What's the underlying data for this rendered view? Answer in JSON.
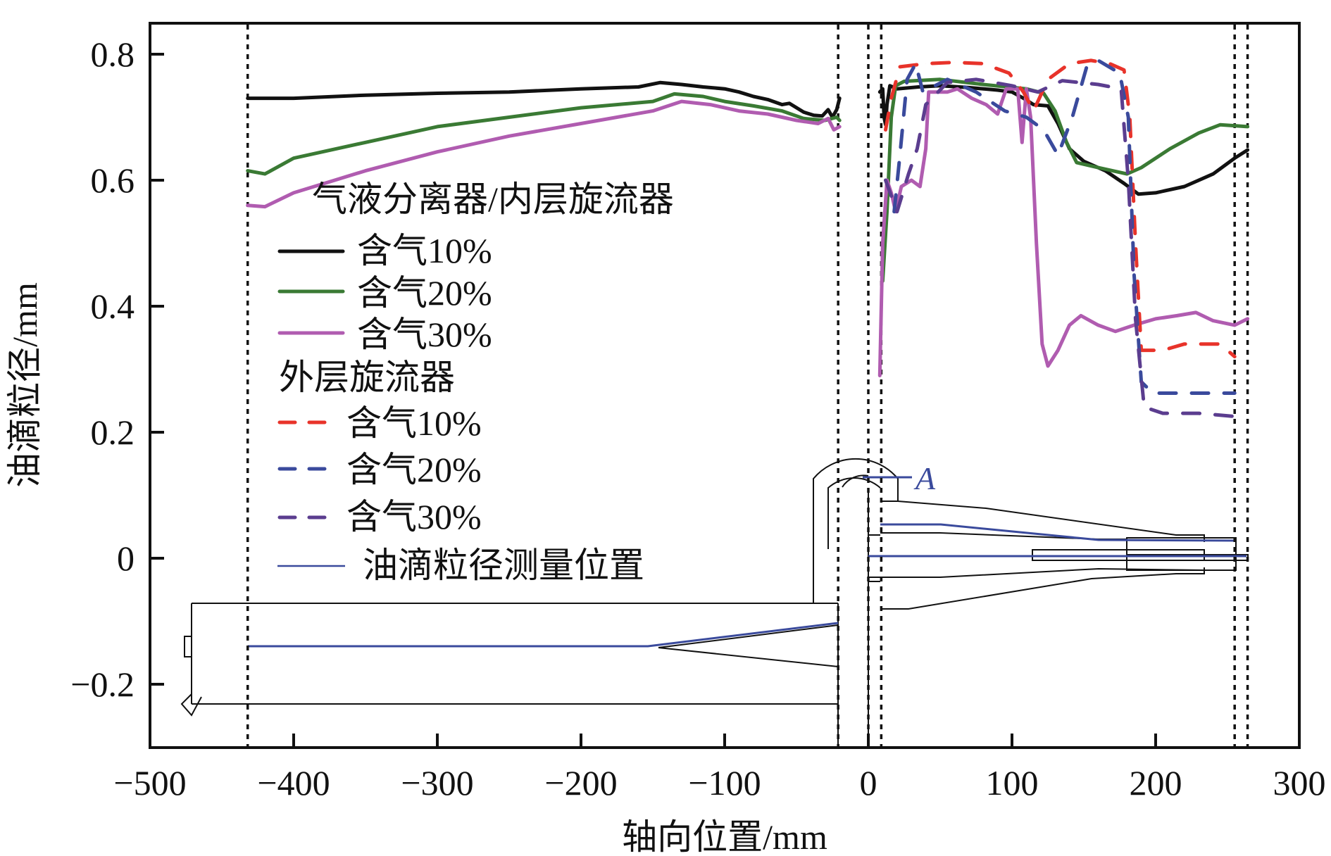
{
  "chart_data": {
    "type": "line",
    "title": "",
    "xlabel": "轴向位置/mm",
    "ylabel": "油滴粒径/mm",
    "xlim": [
      -500,
      300
    ],
    "ylim": [
      -0.3,
      0.85
    ],
    "xticks": [
      -500,
      -400,
      -300,
      -200,
      -100,
      0,
      100,
      200,
      300
    ],
    "xtick_labels": [
      "−500",
      "−400",
      "−300",
      "−200",
      "−100",
      "0",
      "100",
      "200",
      "300"
    ],
    "yticks": [
      -0.2,
      0,
      0.2,
      0.4,
      0.6,
      0.8
    ],
    "ytick_labels": [
      "−0.2",
      "0",
      "0.2",
      "0.4",
      "0.6",
      "0.8"
    ],
    "grid": false,
    "legend_position": "left-center",
    "legend_groups": [
      {
        "heading": "气液分离器/内层旋流器",
        "entries": [
          "含气10%",
          "含气20%",
          "含气30%"
        ]
      },
      {
        "heading": "外层旋流器",
        "entries": [
          "含气10%",
          "含气20%",
          "含气30%"
        ]
      },
      {
        "heading": "",
        "entries": [
          "油滴粒径测量位置"
        ]
      }
    ],
    "reference_lines_x": [
      -432,
      -21,
      0,
      9,
      255,
      264
    ],
    "annotation": "A",
    "series": [
      {
        "name": "气液分离器/内层旋流器 含气10%",
        "group": "inner",
        "style": "solid",
        "color": "#111111",
        "segments": [
          [
            [
              -432,
              0.73
            ],
            [
              -400,
              0.73
            ],
            [
              -350,
              0.735
            ],
            [
              -300,
              0.738
            ],
            [
              -250,
              0.74
            ],
            [
              -200,
              0.745
            ],
            [
              -160,
              0.748
            ],
            [
              -145,
              0.755
            ],
            [
              -130,
              0.752
            ],
            [
              -115,
              0.748
            ],
            [
              -100,
              0.745
            ],
            [
              -90,
              0.74
            ],
            [
              -80,
              0.733
            ],
            [
              -70,
              0.728
            ],
            [
              -60,
              0.72
            ],
            [
              -55,
              0.722
            ],
            [
              -45,
              0.708
            ],
            [
              -38,
              0.703
            ],
            [
              -32,
              0.702
            ],
            [
              -28,
              0.712
            ],
            [
              -25,
              0.7
            ],
            [
              -22,
              0.712
            ],
            [
              -20,
              0.73
            ]
          ],
          [
            [
              8,
              0.74
            ],
            [
              10,
              0.745
            ],
            [
              11,
              0.7
            ],
            [
              12,
              0.688
            ],
            [
              13,
              0.72
            ],
            [
              15,
              0.75
            ],
            [
              20,
              0.745
            ],
            [
              35,
              0.748
            ],
            [
              50,
              0.75
            ],
            [
              70,
              0.747
            ],
            [
              90,
              0.743
            ],
            [
              100,
              0.74
            ],
            [
              108,
              0.73
            ],
            [
              115,
              0.72
            ],
            [
              125,
              0.718
            ],
            [
              132,
              0.69
            ],
            [
              140,
              0.65
            ],
            [
              150,
              0.63
            ],
            [
              165,
              0.615
            ],
            [
              178,
              0.595
            ],
            [
              188,
              0.578
            ],
            [
              200,
              0.58
            ],
            [
              220,
              0.59
            ],
            [
              240,
              0.61
            ],
            [
              255,
              0.635
            ],
            [
              264,
              0.648
            ]
          ]
        ]
      },
      {
        "name": "气液分离器/内层旋流器 含气20%",
        "group": "inner",
        "style": "solid",
        "color": "#3a7a34",
        "segments": [
          [
            [
              -432,
              0.615
            ],
            [
              -420,
              0.61
            ],
            [
              -400,
              0.635
            ],
            [
              -350,
              0.66
            ],
            [
              -300,
              0.685
            ],
            [
              -250,
              0.7
            ],
            [
              -200,
              0.715
            ],
            [
              -150,
              0.725
            ],
            [
              -135,
              0.737
            ],
            [
              -115,
              0.733
            ],
            [
              -100,
              0.725
            ],
            [
              -80,
              0.718
            ],
            [
              -60,
              0.71
            ],
            [
              -45,
              0.698
            ],
            [
              -30,
              0.695
            ],
            [
              -22,
              0.7
            ],
            [
              -20,
              0.695
            ]
          ],
          [
            [
              10,
              0.44
            ],
            [
              13,
              0.55
            ],
            [
              16,
              0.7
            ],
            [
              19,
              0.75
            ],
            [
              25,
              0.757
            ],
            [
              50,
              0.76
            ],
            [
              80,
              0.752
            ],
            [
              110,
              0.745
            ],
            [
              122,
              0.738
            ],
            [
              130,
              0.71
            ],
            [
              138,
              0.66
            ],
            [
              145,
              0.628
            ],
            [
              160,
              0.62
            ],
            [
              180,
              0.61
            ],
            [
              190,
              0.62
            ],
            [
              210,
              0.65
            ],
            [
              230,
              0.675
            ],
            [
              245,
              0.688
            ],
            [
              264,
              0.685
            ]
          ]
        ]
      },
      {
        "name": "气液分离器/内层旋流器 含气30%",
        "group": "inner",
        "style": "solid",
        "color": "#b05cb0",
        "segments": [
          [
            [
              -432,
              0.56
            ],
            [
              -420,
              0.558
            ],
            [
              -400,
              0.58
            ],
            [
              -350,
              0.615
            ],
            [
              -300,
              0.645
            ],
            [
              -250,
              0.67
            ],
            [
              -200,
              0.69
            ],
            [
              -150,
              0.71
            ],
            [
              -130,
              0.725
            ],
            [
              -110,
              0.72
            ],
            [
              -90,
              0.71
            ],
            [
              -70,
              0.705
            ],
            [
              -50,
              0.695
            ],
            [
              -35,
              0.69
            ],
            [
              -28,
              0.698
            ],
            [
              -24,
              0.68
            ],
            [
              -20,
              0.685
            ]
          ],
          [
            [
              8,
              0.29
            ],
            [
              10,
              0.5
            ],
            [
              13,
              0.6
            ],
            [
              16,
              0.58
            ],
            [
              19,
              0.55
            ],
            [
              23,
              0.59
            ],
            [
              30,
              0.6
            ],
            [
              36,
              0.59
            ],
            [
              40,
              0.65
            ],
            [
              42,
              0.74
            ],
            [
              55,
              0.74
            ],
            [
              62,
              0.745
            ],
            [
              72,
              0.73
            ],
            [
              82,
              0.72
            ],
            [
              90,
              0.705
            ],
            [
              96,
              0.745
            ],
            [
              104,
              0.745
            ],
            [
              107,
              0.66
            ],
            [
              110,
              0.745
            ],
            [
              113,
              0.7
            ],
            [
              117,
              0.5
            ],
            [
              121,
              0.34
            ],
            [
              125,
              0.305
            ],
            [
              132,
              0.33
            ],
            [
              140,
              0.37
            ],
            [
              148,
              0.385
            ],
            [
              160,
              0.37
            ],
            [
              172,
              0.36
            ],
            [
              185,
              0.37
            ],
            [
              200,
              0.38
            ],
            [
              215,
              0.385
            ],
            [
              228,
              0.39
            ],
            [
              240,
              0.377
            ],
            [
              255,
              0.37
            ],
            [
              264,
              0.38
            ]
          ]
        ]
      },
      {
        "name": "外层旋流器 含气10%",
        "group": "outer",
        "style": "dashed",
        "color": "#e8332a",
        "segments": [
          [
            [
              12,
              0.68
            ],
            [
              16,
              0.73
            ],
            [
              22,
              0.78
            ],
            [
              40,
              0.785
            ],
            [
              60,
              0.787
            ],
            [
              80,
              0.785
            ],
            [
              98,
              0.77
            ],
            [
              108,
              0.74
            ],
            [
              115,
              0.71
            ],
            [
              125,
              0.76
            ],
            [
              140,
              0.785
            ],
            [
              155,
              0.79
            ],
            [
              168,
              0.785
            ],
            [
              178,
              0.775
            ],
            [
              182,
              0.7
            ],
            [
              186,
              0.5
            ],
            [
              190,
              0.33
            ],
            [
              205,
              0.33
            ],
            [
              220,
              0.34
            ],
            [
              245,
              0.34
            ],
            [
              255,
              0.32
            ]
          ]
        ]
      },
      {
        "name": "外层旋流器 含气20%",
        "group": "outer",
        "style": "dashed",
        "color": "#3a4a9c",
        "segments": [
          [
            [
              18,
              0.55
            ],
            [
              22,
              0.64
            ],
            [
              27,
              0.76
            ],
            [
              33,
              0.785
            ],
            [
              38,
              0.74
            ],
            [
              55,
              0.76
            ],
            [
              75,
              0.74
            ],
            [
              95,
              0.71
            ],
            [
              110,
              0.7
            ],
            [
              122,
              0.68
            ],
            [
              132,
              0.64
            ],
            [
              142,
              0.7
            ],
            [
              152,
              0.78
            ],
            [
              160,
              0.79
            ],
            [
              175,
              0.77
            ],
            [
              181,
              0.7
            ],
            [
              185,
              0.45
            ],
            [
              190,
              0.28
            ],
            [
              198,
              0.262
            ],
            [
              225,
              0.262
            ],
            [
              255,
              0.262
            ]
          ]
        ]
      },
      {
        "name": "外层旋流器 含气30%",
        "group": "outer",
        "style": "dashed",
        "color": "#5b3d8f",
        "segments": [
          [
            [
              12,
              0.6
            ],
            [
              20,
              0.55
            ],
            [
              28,
              0.61
            ],
            [
              34,
              0.65
            ],
            [
              40,
              0.72
            ],
            [
              55,
              0.755
            ],
            [
              75,
              0.76
            ],
            [
              100,
              0.75
            ],
            [
              118,
              0.74
            ],
            [
              135,
              0.758
            ],
            [
              160,
              0.752
            ],
            [
              176,
              0.745
            ],
            [
              181,
              0.6
            ],
            [
              186,
              0.38
            ],
            [
              192,
              0.24
            ],
            [
              205,
              0.23
            ],
            [
              230,
              0.23
            ],
            [
              255,
              0.225
            ]
          ]
        ]
      }
    ]
  },
  "colors": {
    "inner_10": "#111111",
    "inner_20": "#3a7a34",
    "inner_30": "#b05cb0",
    "outer_10": "#e8332a",
    "outer_20": "#3a4a9c",
    "outer_30": "#5b3d8f",
    "measure_line": "#3a4a9c"
  }
}
